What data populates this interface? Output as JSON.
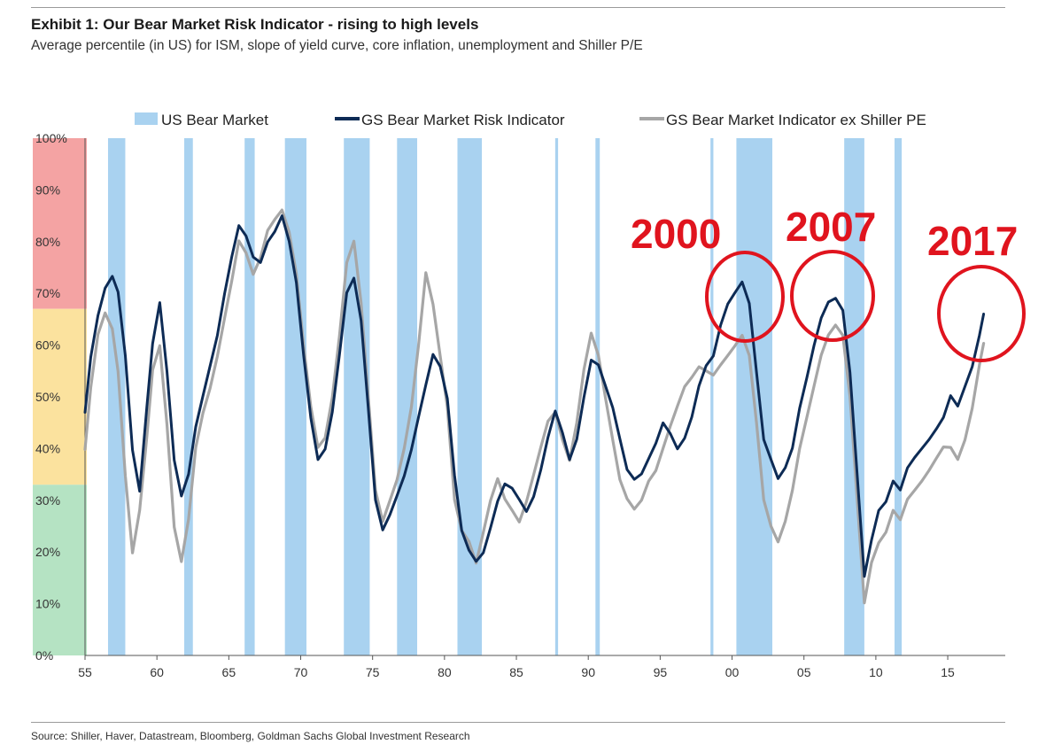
{
  "header": {
    "title": "Exhibit 1: Our Bear Market Risk Indicator - rising to high levels",
    "subtitle": "Average percentile (in US) for ISM, slope of yield curve, core inflation, unemployment and Shiller P/E"
  },
  "footer": {
    "source": "Source: Shiller, Haver, Datastream, Bloomberg, Goldman Sachs Global Investment Research"
  },
  "colors": {
    "bear_band": "#a9d2f0",
    "risk_line": "#0d2b55",
    "ex_pe_line": "#a6a6a6",
    "zone_high": "#f4a3a3",
    "zone_mid": "#fbe29e",
    "zone_low": "#b5e3c3",
    "annotation": "#e0141e"
  },
  "chart_data": {
    "type": "line",
    "title": "Exhibit 1: Our Bear Market Risk Indicator - rising to high levels",
    "subtitle": "Average percentile (in US) for ISM, slope of yield curve, core inflation, unemployment and Shiller P/E",
    "xlim": [
      1955,
      2019
    ],
    "ylim": [
      0,
      100
    ],
    "x_tick_values": [
      1955,
      1960,
      1965,
      1970,
      1975,
      1980,
      1985,
      1990,
      1995,
      2000,
      2005,
      2010,
      2015
    ],
    "x_tick_labels": [
      "55",
      "60",
      "65",
      "70",
      "75",
      "80",
      "85",
      "90",
      "95",
      "00",
      "05",
      "10",
      "15"
    ],
    "y_tick_values": [
      0,
      10,
      20,
      30,
      40,
      50,
      60,
      70,
      80,
      90,
      100
    ],
    "y_tick_labels": [
      "0%",
      "10%",
      "20%",
      "30%",
      "40%",
      "50%",
      "60%",
      "70%",
      "80%",
      "90%",
      "100%"
    ],
    "grid": false,
    "legend_position": "top",
    "legend": [
      "US Bear Market",
      "GS Bear Market Risk Indicator",
      "GS Bear Market Indicator ex Shiller PE"
    ],
    "background_zones": [
      {
        "from": 67,
        "to": 100,
        "color": "#f4a3a3"
      },
      {
        "from": 33,
        "to": 67,
        "color": "#fbe29e"
      },
      {
        "from": 0,
        "to": 33,
        "color": "#b5e3c3"
      }
    ],
    "bear_markets": [
      [
        1956.6,
        1957.8
      ],
      [
        1961.9,
        1962.5
      ],
      [
        1966.1,
        1966.8
      ],
      [
        1968.9,
        1970.4
      ],
      [
        1973.0,
        1974.8
      ],
      [
        1976.7,
        1978.1
      ],
      [
        1980.9,
        1982.6
      ],
      [
        1987.7,
        1987.9
      ],
      [
        1990.5,
        1990.8
      ],
      [
        1998.5,
        1998.7
      ],
      [
        2000.3,
        2002.8
      ],
      [
        2007.8,
        2009.2
      ],
      [
        2011.3,
        2011.8
      ]
    ],
    "series": [
      {
        "name": "GS Bear Market Risk Indicator",
        "x": [
          1955.0,
          1955.4,
          1955.9,
          1956.4,
          1956.9,
          1957.3,
          1957.8,
          1958.3,
          1958.8,
          1959.3,
          1959.7,
          1960.2,
          1960.7,
          1961.2,
          1961.7,
          1962.2,
          1962.7,
          1963.2,
          1963.7,
          1964.2,
          1964.7,
          1965.2,
          1965.7,
          1966.2,
          1966.7,
          1967.2,
          1967.7,
          1968.2,
          1968.7,
          1969.2,
          1969.7,
          1970.2,
          1970.7,
          1971.2,
          1971.7,
          1972.2,
          1972.7,
          1973.2,
          1973.7,
          1974.2,
          1974.7,
          1975.2,
          1975.7,
          1976.2,
          1976.7,
          1977.2,
          1977.7,
          1978.2,
          1978.7,
          1979.2,
          1979.7,
          1980.2,
          1980.7,
          1981.2,
          1981.7,
          1982.2,
          1982.7,
          1983.2,
          1983.7,
          1984.2,
          1984.7,
          1985.2,
          1985.7,
          1986.2,
          1986.7,
          1987.2,
          1987.7,
          1988.2,
          1988.7,
          1989.2,
          1989.7,
          1990.2,
          1990.7,
          1991.2,
          1991.7,
          1992.2,
          1992.7,
          1993.2,
          1993.7,
          1994.2,
          1994.7,
          1995.2,
          1995.7,
          1996.2,
          1996.7,
          1997.2,
          1997.7,
          1998.2,
          1998.7,
          1999.2,
          1999.7,
          2000.2,
          2000.7,
          2001.2,
          2001.7,
          2002.2,
          2002.7,
          2003.2,
          2003.7,
          2004.2,
          2004.7,
          2005.2,
          2005.7,
          2006.2,
          2006.7,
          2007.2,
          2007.7,
          2008.2,
          2008.7,
          2009.2,
          2009.7,
          2010.2,
          2010.7,
          2011.2,
          2011.7,
          2012.2,
          2012.7,
          2013.2,
          2013.7,
          2014.2,
          2014.7,
          2015.2,
          2015.7,
          2016.2,
          2016.7,
          2017.2,
          2017.5
        ],
        "y": [
          47,
          58,
          66,
          71,
          73,
          70,
          58,
          40,
          32,
          48,
          60,
          68,
          55,
          38,
          31,
          35,
          44,
          50,
          56,
          62,
          70,
          77,
          83,
          81,
          77,
          76,
          80,
          82,
          85,
          80,
          72,
          58,
          46,
          38,
          40,
          47,
          58,
          70,
          73,
          65,
          48,
          30,
          24,
          27,
          31,
          35,
          40,
          46,
          52,
          58,
          56,
          50,
          35,
          24,
          20,
          18,
          20,
          25,
          30,
          33,
          32,
          30,
          28,
          31,
          36,
          42,
          47,
          43,
          38,
          42,
          50,
          57,
          56,
          52,
          48,
          42,
          36,
          34,
          35,
          38,
          41,
          45,
          43,
          40,
          42,
          46,
          52,
          56,
          58,
          64,
          68,
          70,
          72,
          68,
          55,
          42,
          38,
          34,
          36,
          40,
          48,
          54,
          60,
          65,
          68,
          69,
          67,
          55,
          35,
          15,
          22,
          28,
          30,
          34,
          32,
          36,
          38,
          40,
          42,
          44,
          46,
          50,
          48,
          52,
          56,
          62,
          66
        ]
      },
      {
        "name": "GS Bear Market Indicator ex Shiller PE",
        "x": [
          1955.0,
          1955.4,
          1955.9,
          1956.4,
          1956.9,
          1957.3,
          1957.8,
          1958.3,
          1958.8,
          1959.3,
          1959.7,
          1960.2,
          1960.7,
          1961.2,
          1961.7,
          1962.2,
          1962.7,
          1963.2,
          1963.7,
          1964.2,
          1964.7,
          1965.2,
          1965.7,
          1966.2,
          1966.7,
          1967.2,
          1967.7,
          1968.2,
          1968.7,
          1969.2,
          1969.7,
          1970.2,
          1970.7,
          1971.2,
          1971.7,
          1972.2,
          1972.7,
          1973.2,
          1973.7,
          1974.2,
          1974.7,
          1975.2,
          1975.7,
          1976.2,
          1976.7,
          1977.2,
          1977.7,
          1978.2,
          1978.7,
          1979.2,
          1979.7,
          1980.2,
          1980.7,
          1981.2,
          1981.7,
          1982.2,
          1982.7,
          1983.2,
          1983.7,
          1984.2,
          1984.7,
          1985.2,
          1985.7,
          1986.2,
          1986.7,
          1987.2,
          1987.7,
          1988.2,
          1988.7,
          1989.2,
          1989.7,
          1990.2,
          1990.7,
          1991.2,
          1991.7,
          1992.2,
          1992.7,
          1993.2,
          1993.7,
          1994.2,
          1994.7,
          1995.2,
          1995.7,
          1996.2,
          1996.7,
          1997.2,
          1997.7,
          1998.2,
          1998.7,
          1999.2,
          1999.7,
          2000.2,
          2000.7,
          2001.2,
          2001.7,
          2002.2,
          2002.7,
          2003.2,
          2003.7,
          2004.2,
          2004.7,
          2005.2,
          2005.7,
          2006.2,
          2006.7,
          2007.2,
          2007.7,
          2008.2,
          2008.7,
          2009.2,
          2009.7,
          2010.2,
          2010.7,
          2011.2,
          2011.7,
          2012.2,
          2012.7,
          2013.2,
          2013.7,
          2014.2,
          2014.7,
          2015.2,
          2015.7,
          2016.2,
          2016.7,
          2017.2,
          2017.5
        ],
        "y": [
          40,
          52,
          62,
          66,
          63,
          55,
          35,
          20,
          28,
          42,
          55,
          60,
          45,
          25,
          18,
          26,
          40,
          47,
          52,
          58,
          65,
          72,
          80,
          78,
          74,
          77,
          82,
          84,
          86,
          82,
          74,
          60,
          48,
          40,
          42,
          50,
          62,
          76,
          80,
          68,
          50,
          32,
          26,
          30,
          34,
          40,
          48,
          60,
          74,
          68,
          58,
          48,
          30,
          24,
          22,
          18,
          24,
          30,
          34,
          30,
          28,
          26,
          30,
          35,
          40,
          45,
          47,
          42,
          38,
          45,
          55,
          62,
          58,
          50,
          42,
          34,
          30,
          28,
          30,
          34,
          36,
          40,
          44,
          48,
          52,
          54,
          56,
          55,
          54,
          56,
          58,
          60,
          62,
          58,
          45,
          30,
          25,
          22,
          26,
          32,
          40,
          46,
          52,
          58,
          62,
          64,
          62,
          50,
          30,
          10,
          18,
          22,
          24,
          28,
          26,
          30,
          32,
          34,
          36,
          38,
          40,
          40,
          38,
          42,
          48,
          56,
          60
        ]
      }
    ],
    "annotations": [
      {
        "label": "2000",
        "x": 2001.2,
        "y": 68
      },
      {
        "label": "2007",
        "x": 2006.7,
        "y": 68
      },
      {
        "label": "2017",
        "x": 2017.0,
        "y": 66
      }
    ]
  }
}
